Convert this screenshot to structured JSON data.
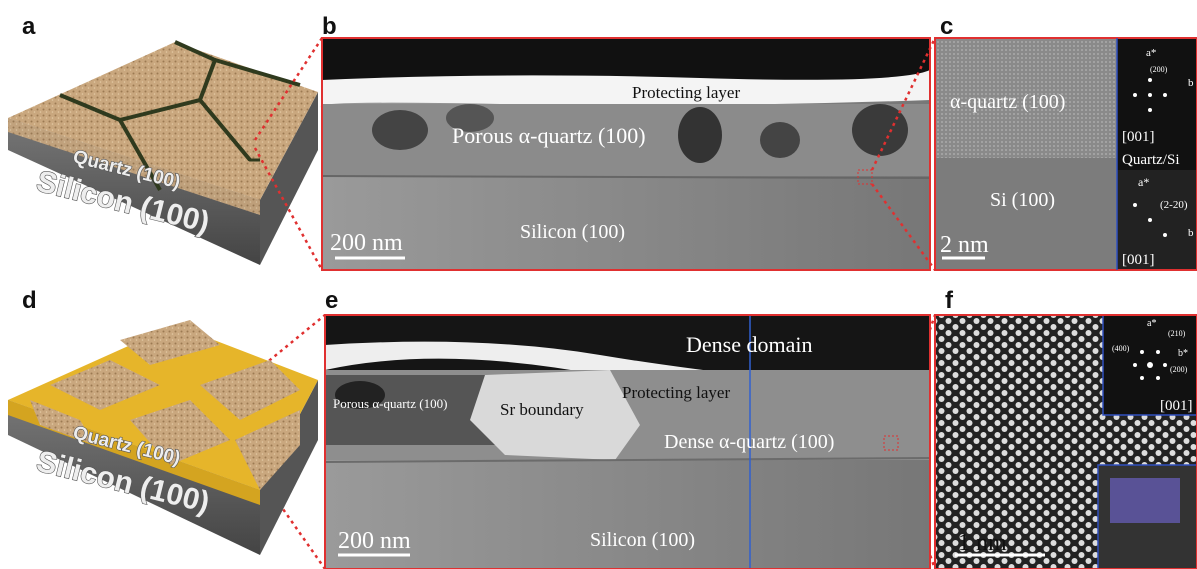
{
  "panels": [
    {
      "label": "a",
      "texts": [
        "Quartz (100)",
        "Silicon (100)"
      ]
    },
    {
      "label": "b",
      "texts": [
        "Protecting layer",
        "Porous α-quartz (100)",
        "Silicon (100)",
        "200 nm"
      ]
    },
    {
      "label": "c",
      "texts": [
        "α-quartz (100)",
        "Si (100)",
        "2 nm",
        "[001]",
        "Quartz/Si",
        "a*",
        "(200)",
        "b",
        "a*",
        "(2-20)",
        "b",
        "[001]"
      ]
    },
    {
      "label": "d",
      "texts": [
        "Quartz (100)",
        "Silicon (100)"
      ]
    },
    {
      "label": "e",
      "texts": [
        "Dense domain",
        "Protecting layer",
        "Porous α-quartz (100)",
        "Sr boundary",
        "Dense α-quartz (100)",
        "200 nm",
        "Silicon (100)"
      ]
    },
    {
      "label": "f",
      "texts": [
        "a*",
        "(210)",
        "(400)",
        "b*",
        "(200)",
        "[001]",
        "1 nm"
      ]
    }
  ]
}
